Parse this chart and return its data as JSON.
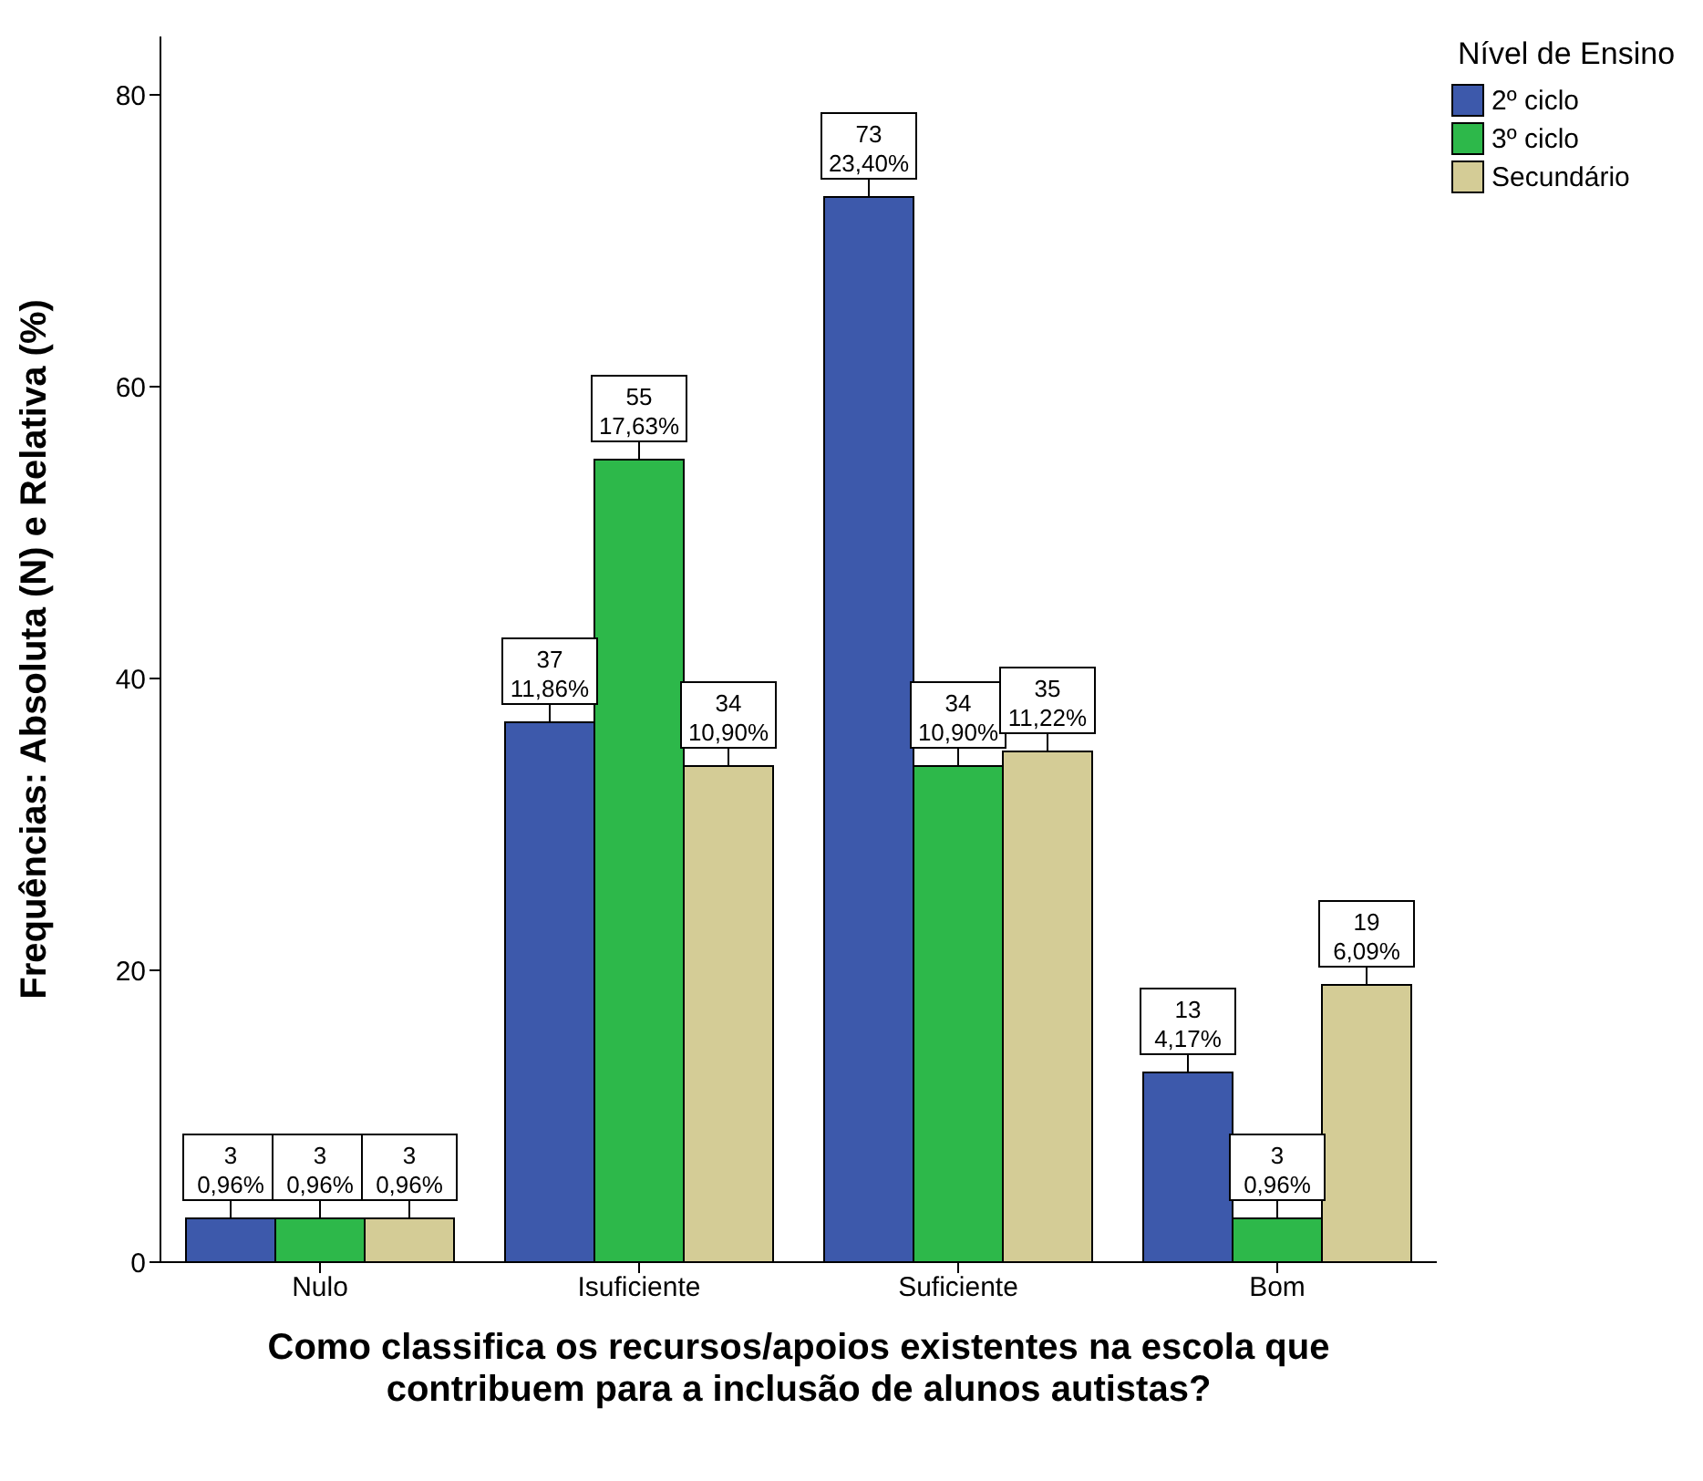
{
  "chart_data": {
    "type": "bar",
    "xlabel": "Como classifica os recursos/apoios existentes na escola que contribuem para a inclusão de alunos autistas?",
    "ylabel": "Frequências: Absoluta (N) e Relativa (%)",
    "legend_title": "Nível de Ensino",
    "legend": "top right",
    "categories": [
      "Nulo",
      "Isuficiente",
      "Suficiente",
      "Bom"
    ],
    "ylim": [
      0,
      84
    ],
    "yticks": [
      0,
      20,
      40,
      60,
      80
    ],
    "series": [
      {
        "name": "2º ciclo",
        "color": "#3d59ab",
        "values": [
          3,
          37,
          73,
          13
        ],
        "value_labels": [
          "3\n0,96%",
          "37\n11,86%",
          "73\n23,40%",
          "13\n4,17%"
        ]
      },
      {
        "name": "3º ciclo",
        "color": "#2db84a",
        "values": [
          3,
          55,
          34,
          3
        ],
        "value_labels": [
          "3\n0,96%",
          "55\n17,63%",
          "34\n10,90%",
          "3\n0,96%"
        ]
      },
      {
        "name": "Secundário",
        "color": "#d4cc96",
        "values": [
          3,
          34,
          35,
          19
        ],
        "value_labels": [
          "3\n0,96%",
          "34\n10,90%",
          "35\n11,22%",
          "19\n6,09%"
        ]
      }
    ]
  }
}
